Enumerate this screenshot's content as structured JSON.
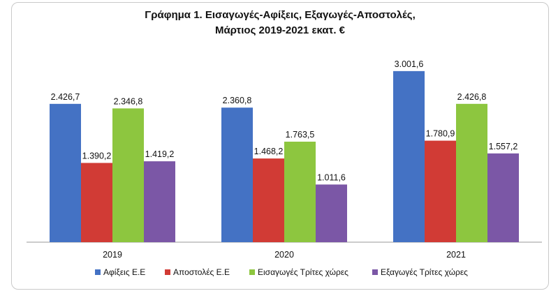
{
  "chart_data": {
    "type": "bar",
    "title": "Γράφημα 1. Εισαγωγές-Αφίξεις, Εξαγωγές-Αποστολές,",
    "subtitle": "Μάρτιος 2019-2021 εκατ. €",
    "categories": [
      "2019",
      "2020",
      "2021"
    ],
    "series": [
      {
        "name": "Αφίξεις Ε.Ε",
        "color": "#4472C4",
        "values": [
          2426.7,
          2360.8,
          3001.6
        ],
        "labels": [
          "2.426,7",
          "2.360,8",
          "3.001,6"
        ]
      },
      {
        "name": "Αποστολές  Ε.Ε",
        "color": "#D13B35",
        "values": [
          1390.2,
          1468.2,
          1780.9
        ],
        "labels": [
          "1.390,2",
          "1.468,2",
          "1.780,9"
        ]
      },
      {
        "name": "Εισαγωγές Τρίτες χώρες",
        "color": "#8DC63F",
        "values": [
          2346.8,
          1763.5,
          2426.8
        ],
        "labels": [
          "2.346,8",
          "1.763,5",
          "2.426,8"
        ]
      },
      {
        "name": "Εξαγωγές Τρίτες χώρες",
        "color": "#7B57A6",
        "values": [
          1419.2,
          1011.6,
          1557.2
        ],
        "labels": [
          "1.419,2",
          "1.011,6",
          "1.557,2"
        ]
      }
    ],
    "ylim": [
      0,
      3500
    ],
    "grid": false,
    "legend": "bottom"
  }
}
